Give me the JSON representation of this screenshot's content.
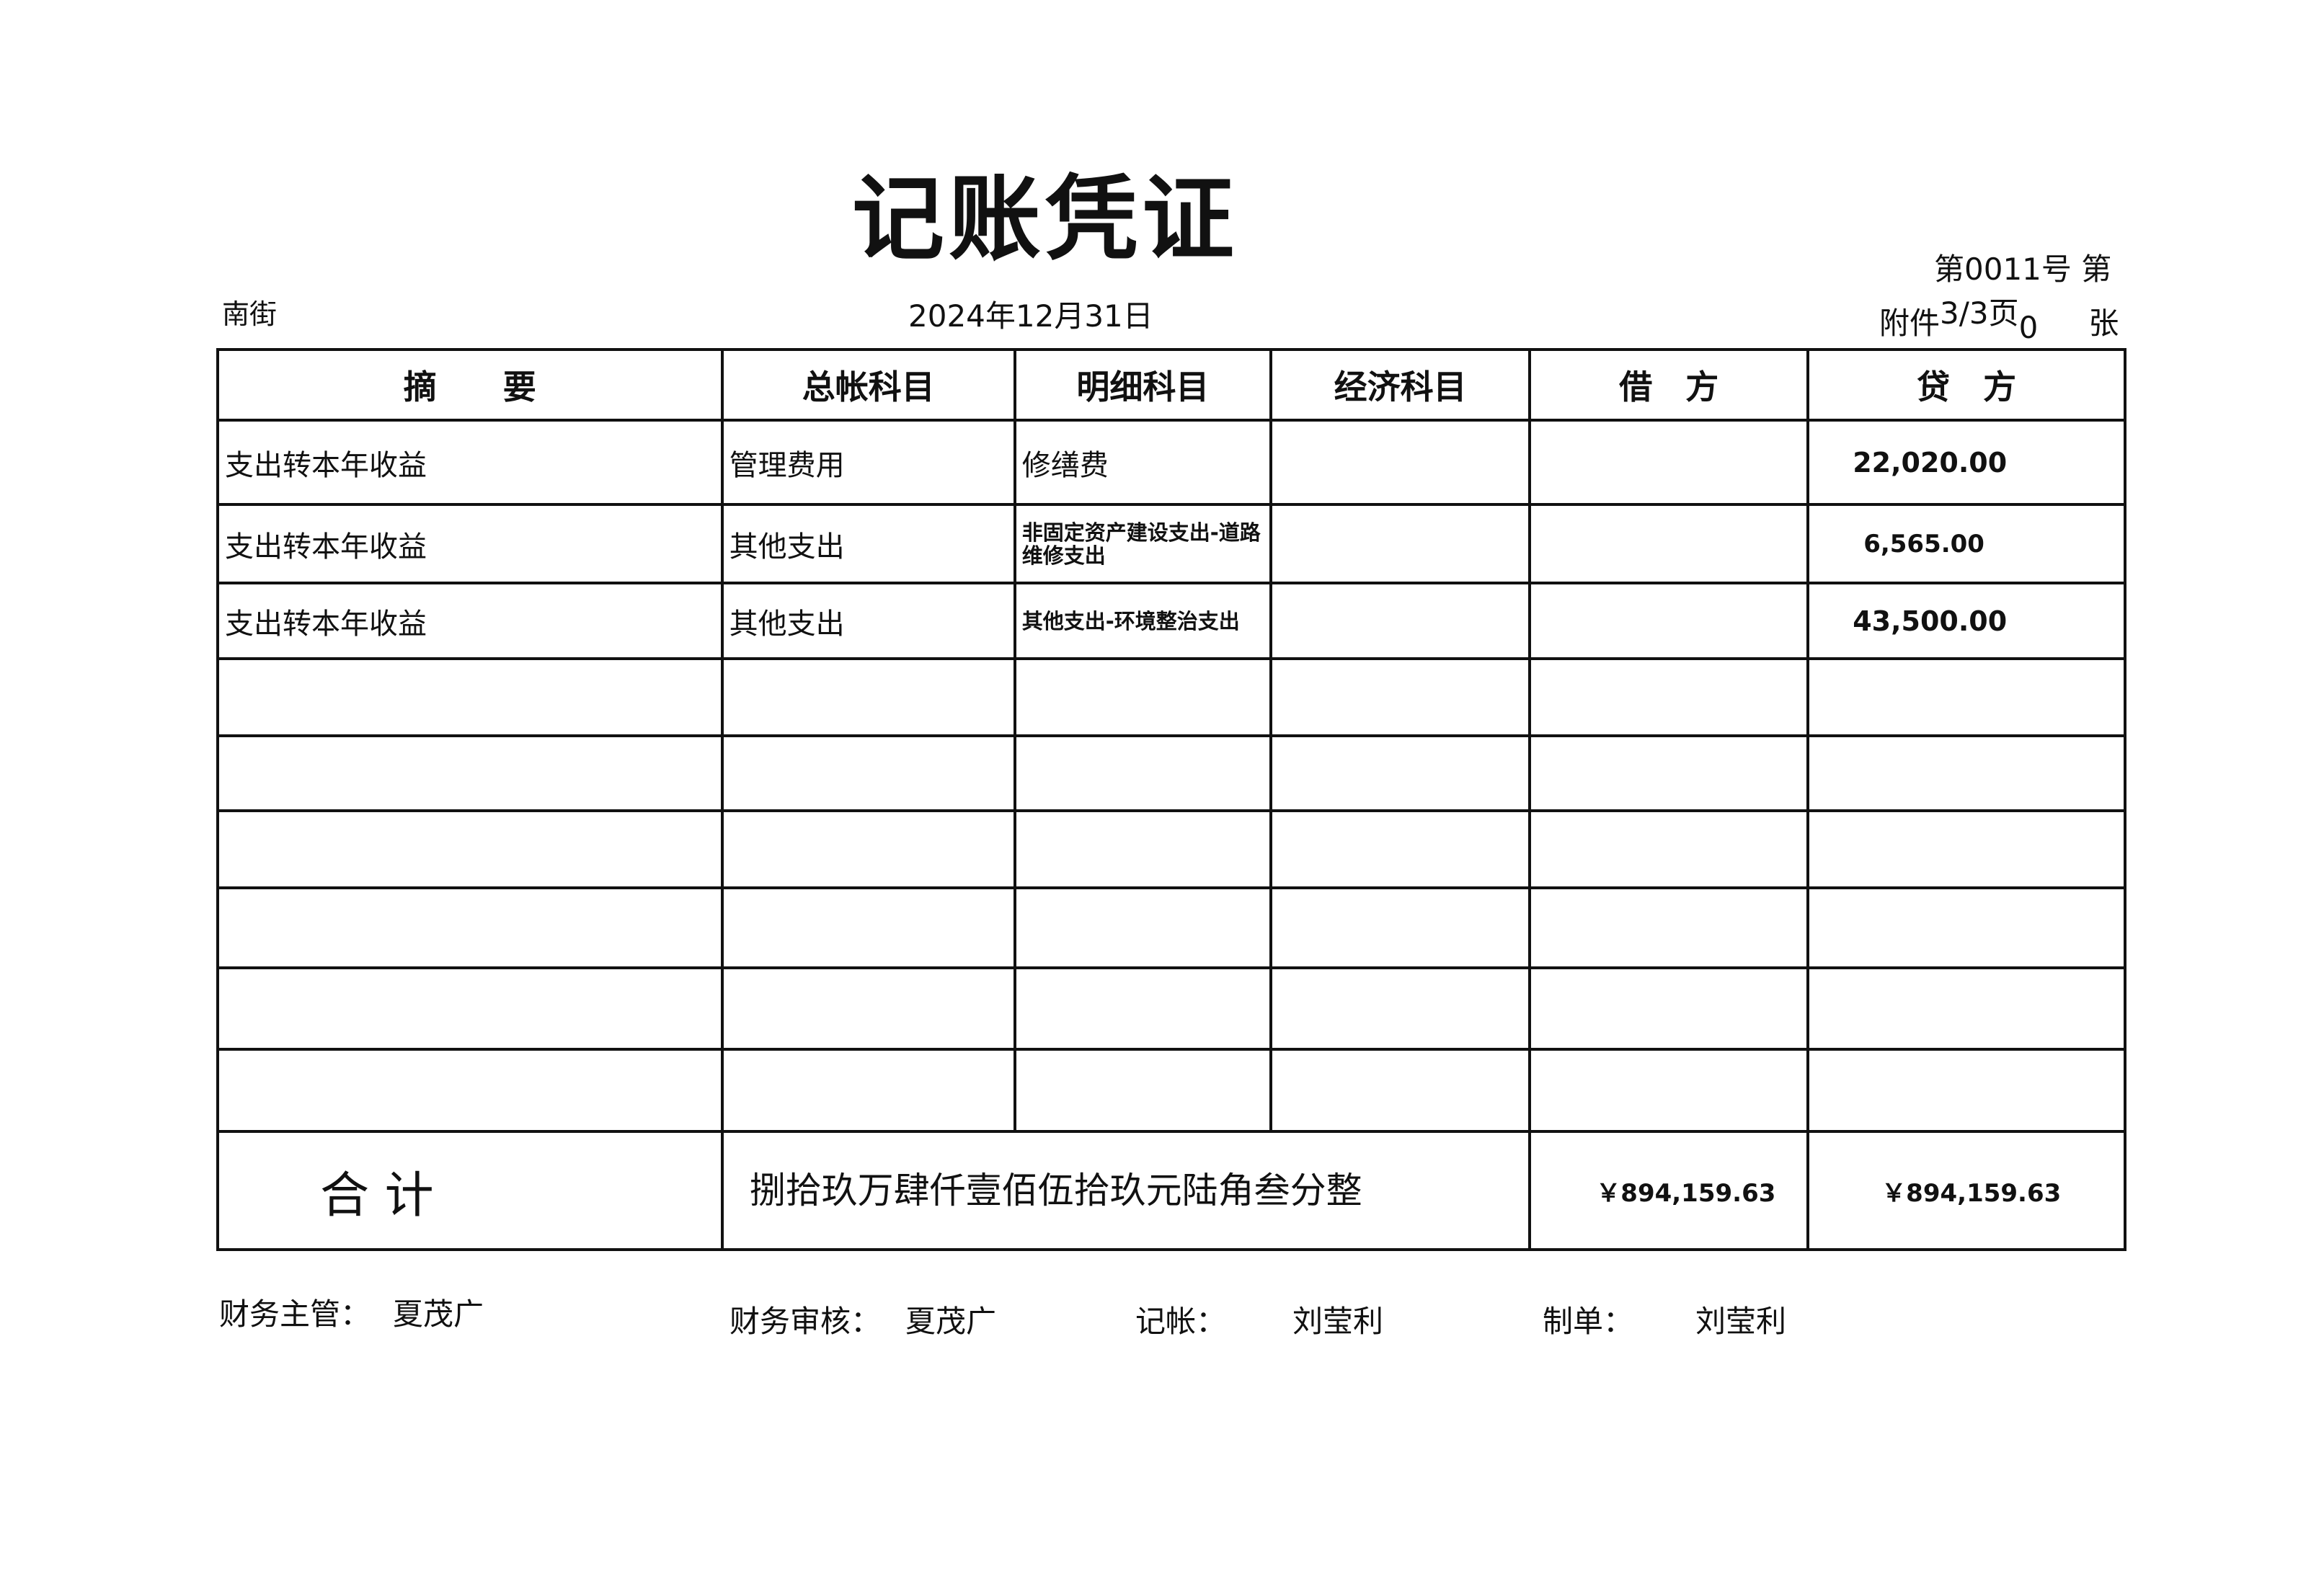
{
  "title": "记账凭证",
  "unit": "南街",
  "date": "2024年12月31日",
  "voucher_no": "第0011号  第",
  "attachment": {
    "label": "附件",
    "page": "3/3页",
    "count": "0",
    "unit": "张"
  },
  "headers": [
    "摘　　要",
    "总帐科目",
    "明细科目",
    "经济科目",
    "借　方",
    "贷　方"
  ],
  "rows": [
    {
      "summary": "支出转本年收益",
      "account": "管理费用",
      "detail": "修缮费",
      "econ": "",
      "debit": "",
      "credit": "22,020.00"
    },
    {
      "summary": "支出转本年收益",
      "account": "其他支出",
      "detail": "非固定资产建设支出-道路维修支出",
      "econ": "",
      "debit": "",
      "credit": "6,565.00"
    },
    {
      "summary": "支出转本年收益",
      "account": "其他支出",
      "detail": "其他支出-环境整治支出",
      "econ": "",
      "debit": "",
      "credit": "43,500.00"
    }
  ],
  "total": {
    "label": "合 计",
    "words": "捌拾玖万肆仟壹佰伍拾玖元陆角叁分整",
    "debit": "￥894,159.63",
    "credit": "￥894,159.63"
  },
  "footer": {
    "supervisor_label": "财务主管：",
    "supervisor": "夏茂广",
    "auditor_label": "财务审核：",
    "auditor": "夏茂广",
    "bookkeeper_label": "记帐：",
    "bookkeeper": "刘莹利",
    "preparer_label": "制单：",
    "preparer": "刘莹利"
  }
}
